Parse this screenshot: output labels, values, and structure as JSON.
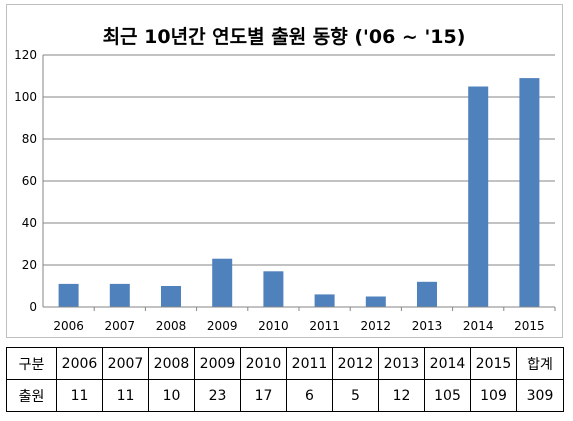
{
  "chart_data": {
    "type": "bar",
    "title": "최근 10년간 연도별 출원 동향 ('06 ~ '15)",
    "categories": [
      "2006",
      "2007",
      "2008",
      "2009",
      "2010",
      "2011",
      "2012",
      "2013",
      "2014",
      "2015"
    ],
    "values": [
      11,
      11,
      10,
      23,
      17,
      6,
      5,
      12,
      105,
      109
    ],
    "ylim": [
      0,
      120
    ],
    "yticks": [
      0,
      20,
      40,
      60,
      80,
      100,
      120
    ],
    "grid": true,
    "legend": "none",
    "colors": {
      "bar": "#4f81bd",
      "grid": "#868686",
      "axis": "#868686"
    }
  },
  "table": {
    "header": [
      "구분",
      "2006",
      "2007",
      "2008",
      "2009",
      "2010",
      "2011",
      "2012",
      "2013",
      "2014",
      "2015",
      "합계"
    ],
    "row": [
      "출원",
      "11",
      "11",
      "10",
      "23",
      "17",
      "6",
      "5",
      "12",
      "105",
      "109",
      "309"
    ]
  }
}
